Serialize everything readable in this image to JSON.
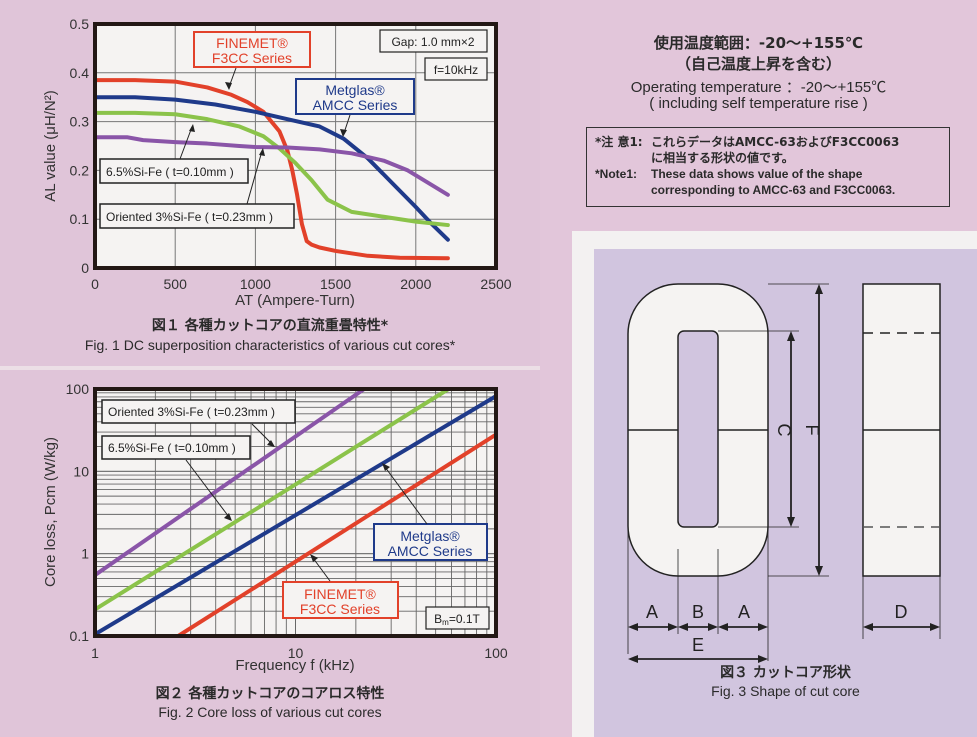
{
  "fig1": {
    "caption_jp": "図１ 各種カットコアの直流重畳特性*",
    "caption_en": "Fig. 1  DC superposition characteristics of various cut cores*",
    "labels": {
      "finemet_line1": "FINEMET®",
      "finemet_line2": "F3CC Series",
      "metglas_line1": "Metglas®",
      "metglas_line2": "AMCC Series",
      "si65": "6.5%Si-Fe ( t=0.10mm )",
      "oriented": "Oriented 3%Si-Fe ( t=0.23mm )",
      "gap": "Gap: 1.0 mm×2",
      "freq": "f=10kHz"
    }
  },
  "fig2": {
    "caption_jp": "図２ 各種カットコアのコアロス特性",
    "caption_en": "Fig. 2  Core loss of various cut cores",
    "labels": {
      "finemet_line1": "FINEMET®",
      "finemet_line2": "F3CC Series",
      "metglas_line1": "Metglas®",
      "metglas_line2": "AMCC Series",
      "si65": "6.5%Si-Fe ( t=0.10mm )",
      "oriented": "Oriented 3%Si-Fe ( t=0.23mm )",
      "bm": "Bm=0.1T"
    }
  },
  "fig3": {
    "caption_jp": "図３ カットコア形状",
    "caption_en": "Fig. 3  Shape of cut core",
    "dims": {
      "a": "A",
      "b": "B",
      "c": "C",
      "d": "D",
      "e": "E",
      "f": "F"
    }
  },
  "temperature": {
    "jp_line1": "使用温度範囲：-20～+155℃",
    "jp_line2": "（自己温度上昇を含む）",
    "en_line1": "Operating temperature ：-20～+155℃",
    "en_line2": "( including self temperature rise )"
  },
  "note": {
    "jp_key": "*注 意1:",
    "jp_line1": "これらデータはAMCC-63およびF3CC0063",
    "jp_line2": "に相当する形状の値です。",
    "en_key": "*Note1:",
    "en_line1": "These data shows value of the shape",
    "en_line2": "corresponding to AMCC-63 and F3CC0063."
  },
  "colors": {
    "finemet": "#e2412a",
    "metglas": "#1f3a8a",
    "si65": "#8bc34a",
    "oriented": "#8a55a8",
    "background_pink": "#e2c6da",
    "background_lavender": "#d1c5df"
  },
  "chart_data": [
    {
      "type": "line",
      "title": "Fig. 1 DC superposition characteristics of various cut cores*",
      "xlabel": "AT (Ampere-Turn)",
      "ylabel": "AL value (μH/N²)",
      "xlim": [
        0,
        2500
      ],
      "ylim": [
        0,
        0.5
      ],
      "xticks": [
        0,
        500,
        1000,
        1500,
        2000,
        2500
      ],
      "yticks": [
        0,
        0.1,
        0.2,
        0.3,
        0.4,
        0.5
      ],
      "grid": true,
      "annotations": [
        "Gap: 1.0 mm×2",
        "f=10kHz"
      ],
      "series": [
        {
          "name": "FINEMET® F3CC Series",
          "color": "#e2412a",
          "x": [
            0,
            250,
            500,
            700,
            850,
            950,
            1050,
            1150,
            1200,
            1230,
            1260,
            1290,
            1320,
            1350,
            1400,
            1500,
            1700,
            1900,
            2200
          ],
          "y": [
            0.385,
            0.385,
            0.382,
            0.37,
            0.355,
            0.34,
            0.32,
            0.28,
            0.24,
            0.2,
            0.15,
            0.09,
            0.055,
            0.048,
            0.042,
            0.035,
            0.025,
            0.021,
            0.02
          ]
        },
        {
          "name": "Metglas® AMCC Series",
          "color": "#1f3a8a",
          "x": [
            0,
            250,
            500,
            750,
            1000,
            1200,
            1400,
            1550,
            1700,
            1850,
            2000,
            2100,
            2200
          ],
          "y": [
            0.35,
            0.35,
            0.345,
            0.335,
            0.32,
            0.305,
            0.29,
            0.265,
            0.225,
            0.175,
            0.125,
            0.09,
            0.058
          ]
        },
        {
          "name": "6.5%Si-Fe (t=0.10mm)",
          "color": "#8bc34a",
          "x": [
            0,
            250,
            500,
            700,
            900,
            1050,
            1150,
            1250,
            1350,
            1450,
            1600,
            1800,
            2000,
            2200
          ],
          "y": [
            0.318,
            0.318,
            0.315,
            0.305,
            0.29,
            0.27,
            0.245,
            0.215,
            0.18,
            0.14,
            0.115,
            0.105,
            0.095,
            0.088
          ]
        },
        {
          "name": "Oriented 3%Si-Fe (t=0.23mm)",
          "color": "#8a55a8",
          "x": [
            0,
            200,
            300,
            500,
            700,
            900,
            1000,
            1200,
            1400,
            1600,
            1800,
            1950,
            2100,
            2200
          ],
          "y": [
            0.268,
            0.268,
            0.262,
            0.258,
            0.255,
            0.25,
            0.248,
            0.247,
            0.243,
            0.235,
            0.22,
            0.2,
            0.17,
            0.15
          ]
        }
      ]
    },
    {
      "type": "line",
      "title": "Fig. 2 Core loss of various cut cores",
      "xlabel": "Frequency f (kHz)",
      "ylabel": "Core loss, Pcm (W/kg)",
      "xscale": "log",
      "yscale": "log",
      "xlim": [
        1,
        100
      ],
      "ylim": [
        0.1,
        100
      ],
      "xticks": [
        1,
        10,
        100
      ],
      "yticks": [
        0.1,
        1,
        10,
        100
      ],
      "grid": true,
      "annotations": [
        "Bm=0.1T"
      ],
      "series": [
        {
          "name": "Oriented 3%Si-Fe (t=0.23mm)",
          "color": "#8a55a8",
          "x": [
            1,
            22
          ],
          "y": [
            0.55,
            100
          ]
        },
        {
          "name": "6.5%Si-Fe (t=0.10mm)",
          "color": "#8bc34a",
          "x": [
            1,
            58
          ],
          "y": [
            0.21,
            100
          ]
        },
        {
          "name": "Metglas® AMCC Series",
          "color": "#1f3a8a",
          "x": [
            1,
            100
          ],
          "y": [
            0.105,
            82
          ]
        },
        {
          "name": "FINEMET® F3CC Series",
          "color": "#e2412a",
          "x": [
            2.6,
            100
          ],
          "y": [
            0.1,
            28
          ]
        }
      ]
    }
  ]
}
